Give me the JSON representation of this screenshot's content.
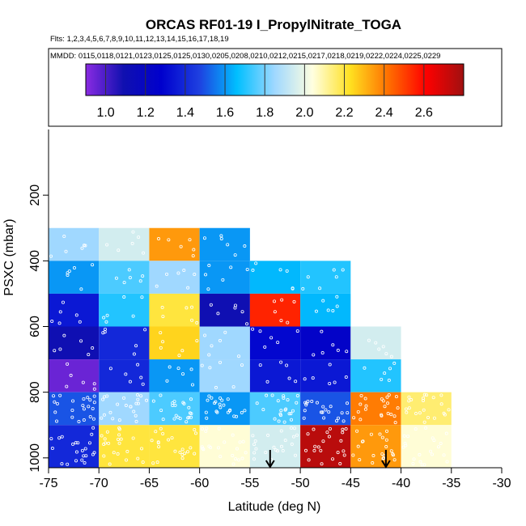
{
  "chart_data": {
    "type": "heatmap",
    "title": "ORCAS RF01-19 I_PropylNitrate_TOGA",
    "flights_line": "Flts: 1,2,3,4,5,6,7,8,9,10,11,12,13,14,15,16,17,18,19",
    "dates_line": "MMDD: 0115,0118,0121,0123,0125,0125,0130,0205,0208,0210,0212,0215,0217,0218,0219,0222,0224,0225,0229",
    "xlabel": "Latitude (deg N)",
    "ylabel": "PSXC (mbar)",
    "xlim": [
      -75,
      -30
    ],
    "ylim": [
      1030,
      0
    ],
    "x_ticks": [
      -75,
      -70,
      -65,
      -60,
      -55,
      -50,
      -45,
      -40,
      -35,
      -30
    ],
    "x_tick_labels": [
      "-75",
      "-70",
      "-65",
      "-60",
      "-55",
      "-50",
      "-45",
      "-40",
      "-35",
      "-30"
    ],
    "y_ticks": [
      200,
      400,
      600,
      800,
      1000
    ],
    "y_tick_labels": [
      "200",
      "400",
      "600",
      "800",
      "1000"
    ],
    "colorbar": {
      "min": 0.9,
      "max": 2.8,
      "ticks": [
        1.0,
        1.2,
        1.4,
        1.6,
        1.8,
        2.0,
        2.2,
        2.4,
        2.6
      ],
      "tick_labels": [
        "1.0",
        "1.2",
        "1.4",
        "1.6",
        "1.8",
        "2.0",
        "2.2",
        "2.4",
        "2.6"
      ],
      "stops": [
        "#8a2be2",
        "#1010b0",
        "#0000cd",
        "#1e40e0",
        "#00bfff",
        "#a0d8ff",
        "#ffffe0",
        "#ffe020",
        "#ff7000",
        "#ff0000",
        "#a01010"
      ]
    },
    "x_bin_edges": [
      -75,
      -70,
      -65,
      -60,
      -55,
      -50,
      -45,
      -40,
      -35
    ],
    "p_bin_edges": [
      300,
      400,
      500,
      600,
      700,
      800,
      900,
      1030
    ],
    "cells": [
      [
        1.85,
        1.95,
        2.35,
        1.6,
        null,
        null,
        null,
        null
      ],
      [
        1.6,
        1.75,
        1.85,
        1.6,
        1.65,
        1.7,
        null,
        null
      ],
      [
        1.35,
        1.7,
        2.2,
        1.1,
        2.55,
        1.65,
        null,
        null
      ],
      [
        1.1,
        1.4,
        2.25,
        1.85,
        1.3,
        1.25,
        1.95,
        null
      ],
      [
        0.95,
        1.4,
        1.6,
        1.85,
        1.35,
        1.35,
        1.7,
        null
      ],
      [
        1.5,
        1.85,
        1.75,
        1.6,
        1.75,
        1.5,
        2.4,
        2.15
      ],
      [
        1.4,
        2.2,
        2.2,
        2.05,
        1.95,
        2.75,
        2.35,
        2.05
      ]
    ],
    "arrows_lat": [
      -53,
      -41.5
    ]
  }
}
